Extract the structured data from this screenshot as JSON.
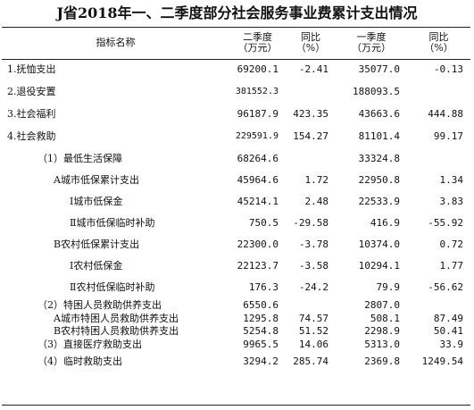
{
  "title": "J省2018年一、二季度部分社会服务事业费累计支出情况",
  "header": {
    "indicator": "指标名称",
    "q2": "二季度",
    "q2_unit": "（万元）",
    "yoy": "同比",
    "yoy_unit": "（%）",
    "q1": "一季度",
    "q1_unit": "（万元）",
    "yoy2": "同比",
    "yoy2_unit": "（%）"
  },
  "rows": [
    {
      "name": "1.抚恤支出",
      "q2": "69200.1",
      "q2_yoy": "-2.41",
      "q1": "35077.0",
      "q1_yoy": "-0.13"
    },
    {
      "name": "2.退役安置",
      "q2": "381552.3",
      "q2_yoy": "",
      "q1": "188093.5",
      "q1_yoy": ""
    },
    {
      "name": "3.社会福利",
      "q2": "96187.9",
      "q2_yoy": "423.35",
      "q1": "43663.6",
      "q1_yoy": "444.88"
    },
    {
      "name": "4.社会救助",
      "q2": "229591.9",
      "q2_yoy": "154.27",
      "q1": "81101.4",
      "q1_yoy": "99.17"
    },
    {
      "name": "（1）最低生活保障",
      "q2": "68264.6",
      "q2_yoy": "",
      "q1": "33324.8",
      "q1_yoy": ""
    },
    {
      "name": "A城市低保累计支出",
      "q2": "45964.6",
      "q2_yoy": "1.72",
      "q1": "22950.8",
      "q1_yoy": "1.34"
    },
    {
      "name": "Ⅰ城市低保金",
      "q2": "45214.1",
      "q2_yoy": "2.48",
      "q1": "22533.9",
      "q1_yoy": "3.83"
    },
    {
      "name": "Ⅱ城市低保临时补助",
      "q2": "750.5",
      "q2_yoy": "-29.58",
      "q1": "416.9",
      "q1_yoy": "-55.92"
    },
    {
      "name": "B农村低保累计支出",
      "q2": "22300.0",
      "q2_yoy": "-3.78",
      "q1": "10374.0",
      "q1_yoy": "0.72"
    },
    {
      "name": "Ⅰ农村低保金",
      "q2": "22123.7",
      "q2_yoy": "-3.58",
      "q1": "10294.1",
      "q1_yoy": "1.77"
    },
    {
      "name": "Ⅱ农村低保临时补助",
      "q2": "176.3",
      "q2_yoy": "-24.2",
      "q1": "79.9",
      "q1_yoy": "-56.62"
    },
    {
      "name": "（2）特困人员救助供养支出",
      "q2": "6550.6",
      "q2_yoy": "",
      "q1": "2807.0",
      "q1_yoy": ""
    },
    {
      "name": "A城市特困人员救助供养支出",
      "q2": "1295.8",
      "q2_yoy": "74.57",
      "q1": "508.1",
      "q1_yoy": "87.49"
    },
    {
      "name": "B农村特困人员救助供养支出",
      "q2": "5254.8",
      "q2_yoy": "51.52",
      "q1": "2298.9",
      "q1_yoy": "50.41"
    },
    {
      "name": "（3）直接医疗救助支出",
      "q2": "9965.5",
      "q2_yoy": "14.06",
      "q1": "5313.0",
      "q1_yoy": "33.9"
    },
    {
      "name": "（4）临时救助支出",
      "q2": "3294.2",
      "q2_yoy": "285.74",
      "q1": "2369.8",
      "q1_yoy": "1249.54"
    }
  ]
}
